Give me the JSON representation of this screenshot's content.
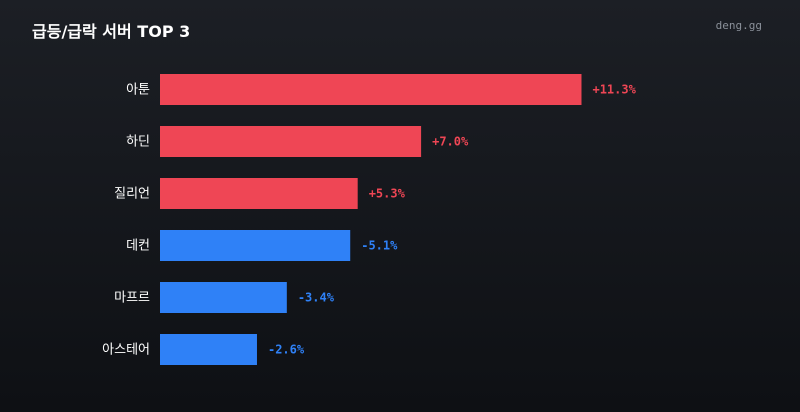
{
  "header": {
    "title": "급등/급락 서버 TOP 3",
    "brand": "deng.gg"
  },
  "colors": {
    "positive": "#ef4655",
    "negative": "#2f81f7"
  },
  "chart_data": {
    "type": "bar",
    "orientation": "horizontal",
    "categories": [
      "아툰",
      "하딘",
      "질리언",
      "데컨",
      "마프르",
      "아스테어"
    ],
    "values": [
      11.3,
      7.0,
      5.3,
      -5.1,
      -3.4,
      -2.6
    ],
    "value_labels": [
      "+11.3%",
      "+7.0%",
      "+5.3%",
      "-5.1%",
      "-3.4%",
      "-2.6%"
    ],
    "value_unit": "%",
    "bar_length": "absolute value",
    "title": "급등/급락 서버 TOP 3",
    "xlabel": "",
    "ylabel": "",
    "grid": false
  }
}
